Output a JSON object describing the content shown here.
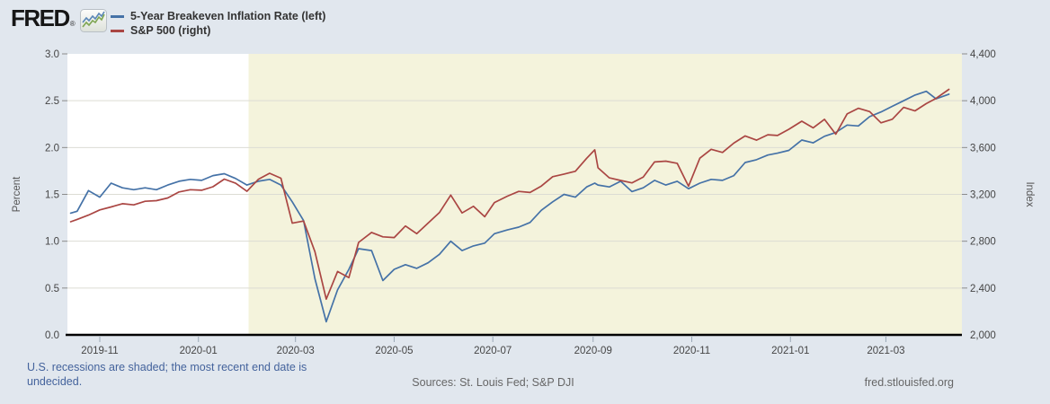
{
  "header": {
    "logo_text": "FRED",
    "registered_mark": "®"
  },
  "legend": {
    "items": [
      {
        "label": "5-Year Breakeven Inflation Rate (left)",
        "color": "#4572a7"
      },
      {
        "label": "S&P 500 (right)",
        "color": "#aa4643"
      }
    ]
  },
  "footer": {
    "recession_note": "U.S. recessions are shaded; the most recent end date is undecided.",
    "sources": "Sources: St. Louis Fed; S&P DJI",
    "site": "fred.stlouisfed.org"
  },
  "colors": {
    "page_background": "#e1e7ee",
    "plot_background": "#ffffff",
    "recession_shading": "#f4f3dc",
    "gridline": "#dcdcd4",
    "axis_line": "#000000",
    "tick_text": "#454545",
    "axis_title_text": "#555555",
    "series_blue": "#4572a7",
    "series_red": "#aa4643"
  },
  "chart_data": {
    "type": "line",
    "title": "",
    "grid": "horizontal",
    "legend_position": "top-left",
    "x_domain": [
      "2019-10-12",
      "2021-04-17"
    ],
    "x_ticks": [
      {
        "date": "2019-11-01",
        "label": "2019-11"
      },
      {
        "date": "2020-01-01",
        "label": "2020-01"
      },
      {
        "date": "2020-03-01",
        "label": "2020-03"
      },
      {
        "date": "2020-05-01",
        "label": "2020-05"
      },
      {
        "date": "2020-07-01",
        "label": "2020-07"
      },
      {
        "date": "2020-09-01",
        "label": "2020-09"
      },
      {
        "date": "2020-11-01",
        "label": "2020-11"
      },
      {
        "date": "2021-01-01",
        "label": "2021-01"
      },
      {
        "date": "2021-03-01",
        "label": "2021-03"
      }
    ],
    "y_left": {
      "label": "Percent",
      "min": 0.0,
      "max": 3.0,
      "ticks": [
        {
          "value": 3.0,
          "label": "3.0"
        },
        {
          "value": 2.5,
          "label": "2.5"
        },
        {
          "value": 2.0,
          "label": "2.0"
        },
        {
          "value": 1.5,
          "label": "1.5"
        },
        {
          "value": 1.0,
          "label": "1.0"
        },
        {
          "value": 0.5,
          "label": "0.5"
        },
        {
          "value": 0.0,
          "label": "0.0"
        }
      ]
    },
    "y_right": {
      "label": "Index",
      "min": 2000,
      "max": 4400,
      "ticks": [
        {
          "value": 4400,
          "label": "4,400"
        },
        {
          "value": 4000,
          "label": "4,000"
        },
        {
          "value": 3600,
          "label": "3,600"
        },
        {
          "value": 3200,
          "label": "3,200"
        },
        {
          "value": 2800,
          "label": "2,800"
        },
        {
          "value": 2400,
          "label": "2,400"
        },
        {
          "value": 2000,
          "label": "2,000"
        }
      ]
    },
    "recession": {
      "start": "2020-02-01",
      "end": "2021-04-17",
      "color": "#f4f3dc",
      "end_undecided": true
    },
    "x": [
      "2019-10-14",
      "2019-10-18",
      "2019-10-25",
      "2019-11-01",
      "2019-11-08",
      "2019-11-15",
      "2019-11-22",
      "2019-11-29",
      "2019-12-06",
      "2019-12-13",
      "2019-12-20",
      "2019-12-27",
      "2020-01-03",
      "2020-01-10",
      "2020-01-17",
      "2020-01-24",
      "2020-01-31",
      "2020-02-07",
      "2020-02-14",
      "2020-02-21",
      "2020-02-28",
      "2020-03-06",
      "2020-03-13",
      "2020-03-20",
      "2020-03-27",
      "2020-04-03",
      "2020-04-09",
      "2020-04-17",
      "2020-04-24",
      "2020-05-01",
      "2020-05-08",
      "2020-05-15",
      "2020-05-22",
      "2020-05-29",
      "2020-06-05",
      "2020-06-12",
      "2020-06-19",
      "2020-06-26",
      "2020-07-02",
      "2020-07-10",
      "2020-07-17",
      "2020-07-24",
      "2020-07-31",
      "2020-08-07",
      "2020-08-14",
      "2020-08-21",
      "2020-08-28",
      "2020-09-02",
      "2020-09-04",
      "2020-09-11",
      "2020-09-18",
      "2020-09-25",
      "2020-10-02",
      "2020-10-09",
      "2020-10-16",
      "2020-10-23",
      "2020-10-30",
      "2020-11-06",
      "2020-11-13",
      "2020-11-20",
      "2020-11-27",
      "2020-12-04",
      "2020-12-11",
      "2020-12-18",
      "2020-12-24",
      "2020-12-31",
      "2021-01-08",
      "2021-01-15",
      "2021-01-22",
      "2021-01-29",
      "2021-02-05",
      "2021-02-12",
      "2021-02-19",
      "2021-02-26",
      "2021-03-05",
      "2021-03-12",
      "2021-03-19",
      "2021-03-26",
      "2021-04-01",
      "2021-04-09"
    ],
    "series": [
      {
        "name": "5-Year Breakeven Inflation Rate",
        "legend_label": "5-Year Breakeven Inflation Rate (left)",
        "axis": "left",
        "unit": "Percent",
        "color": "#4572a7",
        "values": [
          1.3,
          1.32,
          1.54,
          1.47,
          1.62,
          1.57,
          1.55,
          1.57,
          1.55,
          1.6,
          1.64,
          1.66,
          1.65,
          1.7,
          1.72,
          1.67,
          1.6,
          1.64,
          1.66,
          1.6,
          1.42,
          1.22,
          0.6,
          0.14,
          0.48,
          0.7,
          0.92,
          0.9,
          0.58,
          0.7,
          0.75,
          0.71,
          0.77,
          0.86,
          1.0,
          0.9,
          0.95,
          0.98,
          1.08,
          1.12,
          1.15,
          1.2,
          1.33,
          1.42,
          1.5,
          1.47,
          1.58,
          1.62,
          1.6,
          1.58,
          1.64,
          1.53,
          1.57,
          1.65,
          1.6,
          1.64,
          1.56,
          1.62,
          1.66,
          1.65,
          1.7,
          1.84,
          1.87,
          1.92,
          1.94,
          1.97,
          2.08,
          2.05,
          2.12,
          2.16,
          2.24,
          2.23,
          2.33,
          2.38,
          2.44,
          2.5,
          2.56,
          2.6,
          2.52,
          2.57
        ]
      },
      {
        "name": "S&P 500",
        "legend_label": "S&P 500 (right)",
        "axis": "right",
        "unit": "Index",
        "color": "#aa4643",
        "values": [
          2966,
          2986,
          3023,
          3067,
          3093,
          3120,
          3110,
          3141,
          3146,
          3169,
          3221,
          3240,
          3235,
          3265,
          3330,
          3295,
          3226,
          3328,
          3380,
          3338,
          2954,
          2972,
          2711,
          2305,
          2541,
          2489,
          2790,
          2875,
          2837,
          2831,
          2930,
          2864,
          2955,
          3044,
          3194,
          3041,
          3098,
          3009,
          3130,
          3185,
          3225,
          3216,
          3271,
          3351,
          3373,
          3397,
          3508,
          3580,
          3427,
          3341,
          3319,
          3298,
          3348,
          3477,
          3484,
          3465,
          3270,
          3509,
          3585,
          3558,
          3638,
          3699,
          3663,
          3709,
          3703,
          3756,
          3825,
          3768,
          3841,
          3714,
          3887,
          3935,
          3907,
          3811,
          3842,
          3943,
          3913,
          3975,
          4020,
          4097
        ]
      }
    ]
  }
}
